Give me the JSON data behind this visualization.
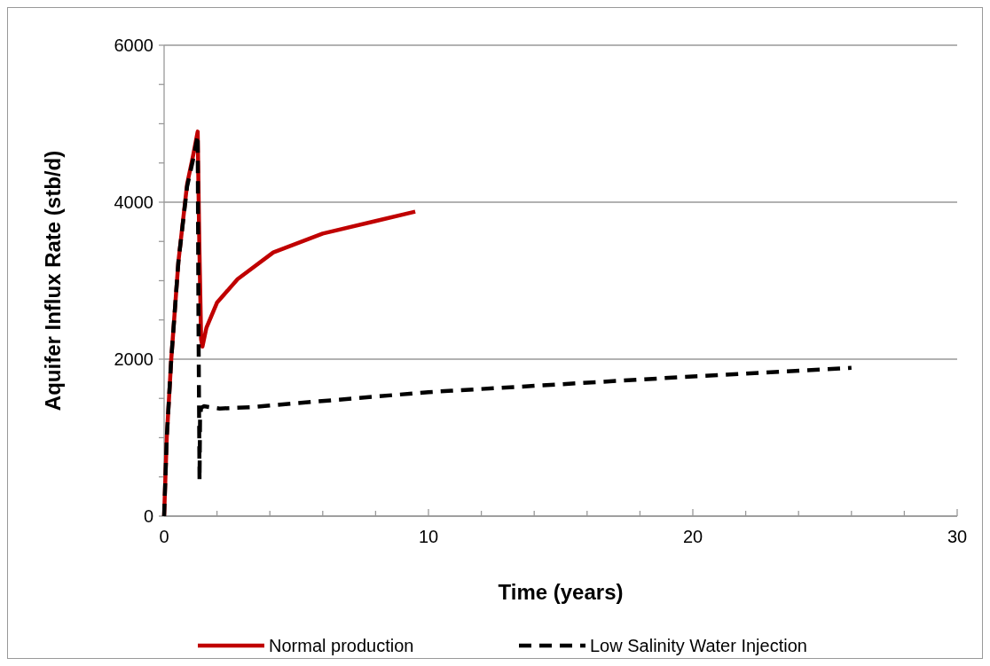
{
  "chart_data": {
    "type": "line",
    "xlabel": "Time (years)",
    "ylabel": "Aquifer Influx Rate (stb/d)",
    "xlim": [
      0,
      30
    ],
    "ylim": [
      0,
      6000
    ],
    "xticks": [
      0,
      {
        "value": 2,
        "label": null
      },
      {
        "value": 4,
        "label": null
      },
      {
        "value": 6,
        "label": null
      },
      {
        "value": 8,
        "label": null
      },
      10,
      {
        "value": 12,
        "label": null
      },
      {
        "value": 14,
        "label": null
      },
      {
        "value": 16,
        "label": null
      },
      {
        "value": 18,
        "label": null
      },
      20,
      {
        "value": 22,
        "label": null
      },
      {
        "value": 24,
        "label": null
      },
      {
        "value": 26,
        "label": null
      },
      {
        "value": 28,
        "label": null
      },
      30
    ],
    "yticks": [
      0,
      {
        "value": 500,
        "label": null
      },
      {
        "value": 1000,
        "label": null
      },
      {
        "value": 1500,
        "label": null
      },
      2000,
      {
        "value": 2500,
        "label": null
      },
      {
        "value": 3000,
        "label": null
      },
      {
        "value": 3500,
        "label": null
      },
      4000,
      {
        "value": 4500,
        "label": null
      },
      {
        "value": 5000,
        "label": null
      },
      {
        "value": 5500,
        "label": null
      },
      6000
    ],
    "grid": "y",
    "legend": "bottom",
    "series": [
      {
        "name": "Normal production",
        "color": "#c00000",
        "line_style": "solid",
        "x": [
          0,
          0.1,
          0.27,
          0.54,
          0.87,
          1.1,
          1.27,
          1.33,
          1.4,
          1.45,
          1.6,
          2,
          2.78,
          4.13,
          6,
          8,
          9.5
        ],
        "values": [
          0,
          1000,
          2000,
          3240,
          4230,
          4600,
          4900,
          3500,
          2250,
          2160,
          2400,
          2720,
          3020,
          3360,
          3600,
          3760,
          3880
        ]
      },
      {
        "name": "Low Salinity Water Injection",
        "color": "#000000",
        "line_style": "dashed",
        "x": [
          0,
          0.1,
          0.27,
          0.54,
          0.87,
          1.1,
          1.27,
          1.3,
          1.34,
          1.36,
          1.4,
          1.5,
          2.1,
          3.4,
          4,
          10,
          20,
          26
        ],
        "values": [
          0,
          1000,
          2000,
          3240,
          4200,
          4550,
          4850,
          2500,
          460,
          1250,
          1380,
          1400,
          1370,
          1390,
          1410,
          1580,
          1780,
          1890
        ]
      }
    ]
  }
}
